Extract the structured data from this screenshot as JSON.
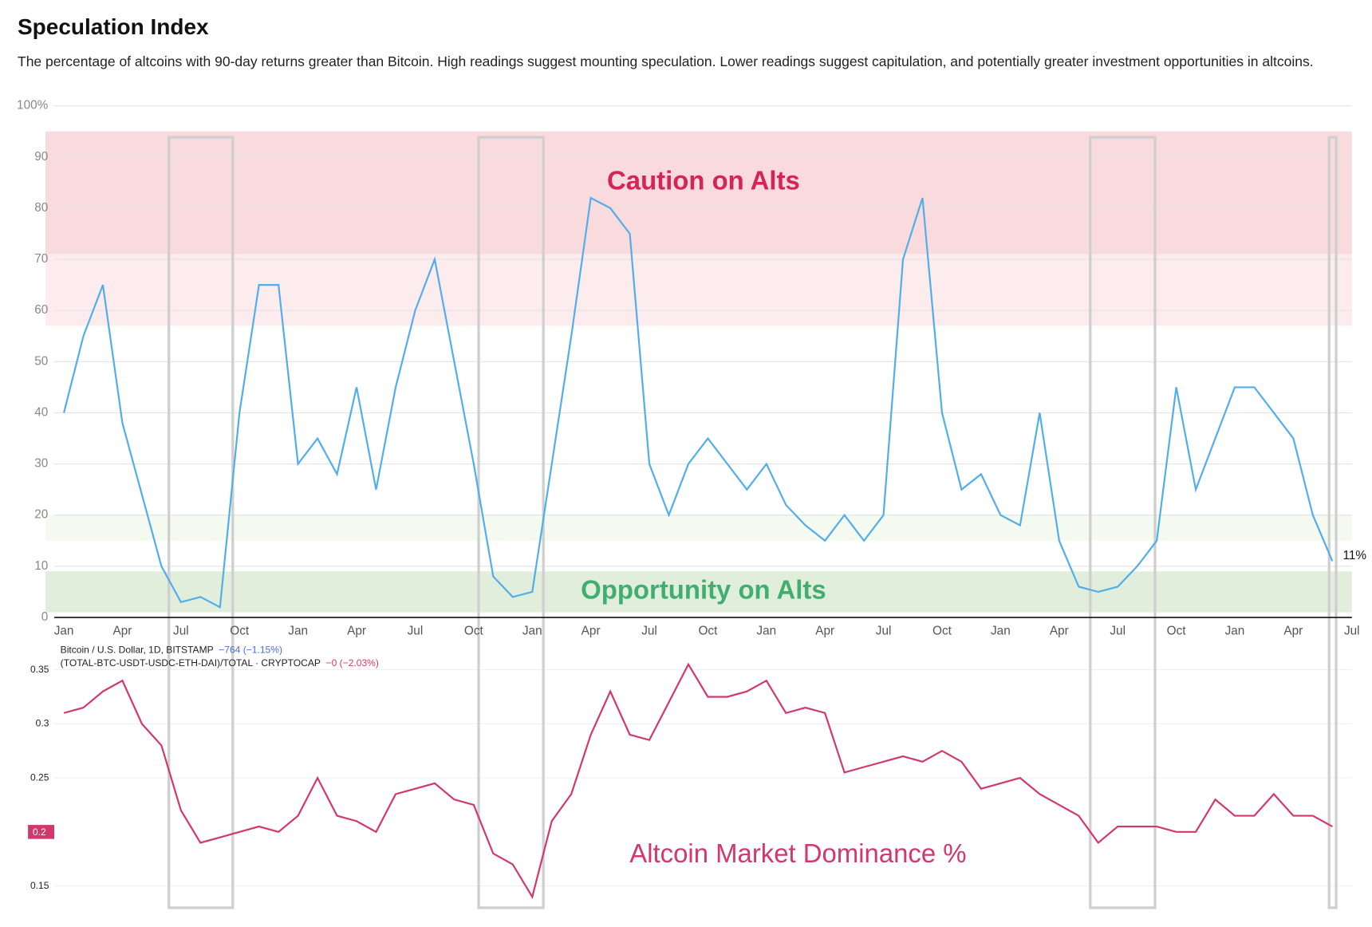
{
  "header": {
    "title": "Speculation Index",
    "subtitle": "The percentage of altcoins with 90-day returns greater than Bitcoin. High readings suggest mounting speculation. Lower readings suggest capitulation, and potentially greater investment opportunities in altcoins."
  },
  "chart_data": [
    {
      "type": "line",
      "color": "#52aeea",
      "ylim": [
        0,
        100
      ],
      "yticks": [
        0,
        10,
        20,
        30,
        40,
        50,
        60,
        70,
        80,
        90,
        {
          "value": 100,
          "label": "100%"
        }
      ],
      "grid": true,
      "categories": [
        "Jan",
        null,
        null,
        "Apr",
        null,
        null,
        "Jul",
        null,
        null,
        "Oct",
        null,
        null,
        "Jan",
        null,
        null,
        "Apr",
        null,
        null,
        "Jul",
        null,
        null,
        "Oct",
        null,
        null,
        "Jan",
        null,
        null,
        "Apr",
        null,
        null,
        "Jul",
        null,
        null,
        "Oct",
        null,
        null,
        "Jan",
        null,
        null,
        "Apr",
        null,
        null,
        "Jul",
        null,
        null,
        "Oct",
        null,
        null,
        "Jan",
        null,
        null,
        "Apr",
        null,
        null,
        "Jul",
        null,
        null,
        "Oct",
        null,
        null,
        "Jan",
        null,
        null,
        "Apr",
        null,
        null,
        "Jul"
      ],
      "values": [
        40,
        55,
        65,
        38,
        24,
        10,
        3,
        4,
        2,
        40,
        65,
        65,
        30,
        35,
        28,
        45,
        25,
        45,
        60,
        70,
        50,
        30,
        8,
        4,
        5,
        30,
        55,
        82,
        80,
        75,
        30,
        20,
        30,
        35,
        30,
        25,
        30,
        22,
        18,
        15,
        20,
        15,
        20,
        70,
        82,
        40,
        25,
        28,
        20,
        18,
        40,
        15,
        6,
        5,
        6,
        10,
        15,
        45,
        25,
        35,
        45,
        45,
        40,
        35,
        20,
        11,
        null
      ],
      "value_labels": [
        null,
        null,
        null,
        null,
        null,
        null,
        null,
        null,
        null,
        null,
        null,
        null,
        null,
        null,
        null,
        null,
        null,
        null,
        null,
        null,
        null,
        null,
        null,
        null,
        null,
        null,
        null,
        null,
        null,
        null,
        null,
        null,
        null,
        null,
        null,
        null,
        null,
        null,
        null,
        null,
        null,
        null,
        null,
        null,
        null,
        null,
        null,
        null,
        null,
        null,
        null,
        null,
        null,
        null,
        null,
        null,
        null,
        null,
        null,
        null,
        null,
        null,
        null,
        null,
        null,
        "11%",
        null
      ],
      "zones": [
        {
          "from": 71,
          "to": 95,
          "color": "#f9dadd"
        },
        {
          "from": 57,
          "to": 71,
          "color": "#fdecee"
        },
        {
          "from": 15,
          "to": 20,
          "color": "#f5faf0"
        },
        {
          "from": 1,
          "to": 9,
          "color": "#e1eedb"
        }
      ],
      "annotations": [
        {
          "text": "Caution on Alts",
          "color": "#d4245a"
        },
        {
          "text": "Opportunity on Alts",
          "color": "#3fae6e"
        }
      ]
    },
    {
      "type": "line",
      "color": "#d2386b",
      "ylim": [
        0.125,
        0.375
      ],
      "yticks": [
        0.15,
        0.25,
        0.3,
        0.35
      ],
      "current_value": 0.2,
      "legend": [
        {
          "name": "Bitcoin / U.S. Dollar, 1D, BITSTAMP",
          "change": "−764 (−1.15%)",
          "color": "#4a6ee0"
        },
        {
          "name": "(TOTAL-BTC-USDT-USDC-ETH-DAI)/TOTAL · CRYPTOCAP",
          "change": "−0 (−2.03%)",
          "color": "#d2386b"
        }
      ],
      "annotation": "Altcoin Market Dominance %",
      "values": [
        0.31,
        0.315,
        0.33,
        0.34,
        0.3,
        0.28,
        0.22,
        0.19,
        0.195,
        0.2,
        0.205,
        0.2,
        0.215,
        0.25,
        0.215,
        0.21,
        0.2,
        0.235,
        0.24,
        0.245,
        0.23,
        0.225,
        0.18,
        0.17,
        0.14,
        0.21,
        0.235,
        0.29,
        0.33,
        0.29,
        0.285,
        0.32,
        0.355,
        0.325,
        0.325,
        0.33,
        0.34,
        0.31,
        0.315,
        0.31,
        0.255,
        0.26,
        0.265,
        0.27,
        0.265,
        0.275,
        0.265,
        0.24,
        0.245,
        0.25,
        0.235,
        0.225,
        0.215,
        0.19,
        0.205,
        0.205,
        0.205,
        0.2,
        0.2,
        0.23,
        0.215,
        0.215,
        0.235,
        0.215,
        0.215,
        0.205,
        null
      ]
    }
  ]
}
